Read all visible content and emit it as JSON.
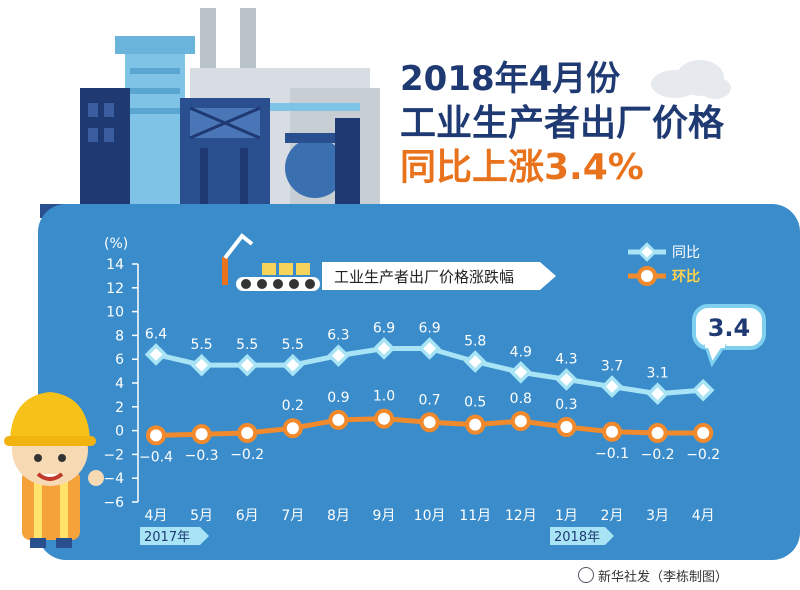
{
  "title": {
    "line1": "2018年4月份",
    "line2": "工业生产者出厂价格",
    "line3": "同比上涨3.4%"
  },
  "chart_data": {
    "type": "line",
    "subtitle": "工业生产者出厂价格涨跌幅",
    "ylabel": "(%)",
    "ylim": [
      -6,
      14
    ],
    "yticks": [
      "14",
      "12",
      "10",
      "8",
      "6",
      "4",
      "2",
      "0",
      "−2",
      "−4",
      "−6"
    ],
    "categories": [
      "4月",
      "5月",
      "6月",
      "7月",
      "8月",
      "9月",
      "10月",
      "11月",
      "12月",
      "1月",
      "2月",
      "3月",
      "4月"
    ],
    "year_tags": [
      "2017年",
      "2018年"
    ],
    "series": [
      {
        "name": "同比",
        "color": "#a8e4f5",
        "values": [
          6.4,
          5.5,
          5.5,
          5.5,
          6.3,
          6.9,
          6.9,
          5.8,
          4.9,
          4.3,
          3.7,
          3.1,
          3.4
        ],
        "labels": [
          "6.4",
          "5.5",
          "5.5",
          "5.5",
          "6.3",
          "6.9",
          "6.9",
          "5.8",
          "4.9",
          "4.3",
          "3.7",
          "3.1",
          "3.4"
        ]
      },
      {
        "name": "环比",
        "color": "#f08a2c",
        "values": [
          -0.4,
          -0.3,
          -0.2,
          0.2,
          0.9,
          1.0,
          0.7,
          0.5,
          0.8,
          0.3,
          -0.1,
          -0.2,
          -0.2
        ],
        "labels": [
          "−0.4",
          "−0.3",
          "−0.2",
          "0.2",
          "0.9",
          "1.0",
          "0.7",
          "0.5",
          "0.8",
          "0.3",
          "−0.1",
          "−0.2",
          "−0.2"
        ]
      }
    ],
    "callout": "3.4",
    "grid": false,
    "legend": "top-right"
  },
  "credit": "新华社发（李栋制图）",
  "colors": {
    "panel": "#3a8ccb",
    "navy": "#1f3a72",
    "accent": "#e8731c"
  }
}
